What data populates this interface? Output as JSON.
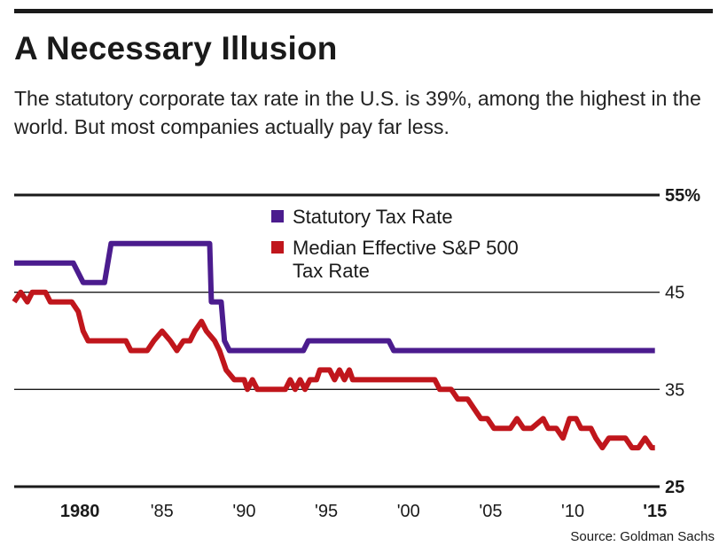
{
  "header": {
    "title": "A Necessary Illusion",
    "subtitle": "The statutory corporate tax rate in the U.S. is 39%, among the highest in the world. But most companies actually pay far less."
  },
  "source": "Source: Goldman Sachs",
  "colors": {
    "statutory": "#4b1c8e",
    "effective": "#c0161c",
    "rule": "#1a1a1a"
  },
  "chart_data": {
    "type": "line",
    "title": "A Necessary Illusion",
    "xlabel": "",
    "ylabel": "",
    "xlim": [
      1976,
      2015.5
    ],
    "ylim": [
      25,
      55
    ],
    "grid": true,
    "legend_position": "top-center",
    "y_ticks": [
      {
        "value": 55,
        "label": "55%"
      },
      {
        "value": 45,
        "label": "45"
      },
      {
        "value": 35,
        "label": "35"
      },
      {
        "value": 25,
        "label": "25"
      }
    ],
    "x_ticks": [
      {
        "value": 1980,
        "label": "1980",
        "bold": true
      },
      {
        "value": 1985,
        "label": "'85",
        "bold": false
      },
      {
        "value": 1990,
        "label": "'90",
        "bold": false
      },
      {
        "value": 1995,
        "label": "'95",
        "bold": false
      },
      {
        "value": 2000,
        "label": "'00",
        "bold": false
      },
      {
        "value": 2005,
        "label": "'05",
        "bold": false
      },
      {
        "value": 2010,
        "label": "'10",
        "bold": false
      },
      {
        "value": 2015,
        "label": "'15",
        "bold": true
      }
    ],
    "series": [
      {
        "name": "Statutory Tax Rate",
        "color": "#4b1c8e",
        "x": [
          1976,
          1979.6,
          1980.2,
          1981.5,
          1981.9,
          1986.8,
          1987.9,
          1988,
          1988.6,
          1988.8,
          1989.1,
          1993.6,
          1993.9,
          1998.8,
          1999.1,
          2015
        ],
        "y": [
          48,
          48,
          46,
          46,
          50,
          50,
          50,
          44,
          44,
          40,
          39,
          39,
          40,
          40,
          39,
          39
        ]
      },
      {
        "name": "Median Effective S&P 500 Tax Rate",
        "color": "#c0161c",
        "x": [
          1976,
          1976.4,
          1976.8,
          1977.1,
          1977.5,
          1977.9,
          1978.2,
          1979.5,
          1979.9,
          1980.2,
          1980.5,
          1982.8,
          1983.1,
          1984.1,
          1984.5,
          1985,
          1985.5,
          1985.9,
          1986.3,
          1986.7,
          1987,
          1987.4,
          1987.7,
          1988.2,
          1988.5,
          1988.9,
          1989.4,
          1990,
          1990.2,
          1990.5,
          1990.8,
          1992.5,
          1992.8,
          1993.1,
          1993.4,
          1993.7,
          1994,
          1994.4,
          1994.6,
          1995.2,
          1995.5,
          1995.8,
          1996.1,
          1996.4,
          1996.6,
          2001.6,
          2001.9,
          2002.6,
          2003,
          2003.6,
          2004,
          2004.4,
          2004.8,
          2005.2,
          2005.5,
          2006.2,
          2006.6,
          2007,
          2007.5,
          2008.2,
          2008.5,
          2009,
          2009.4,
          2009.8,
          2010.2,
          2010.5,
          2011.1,
          2011.4,
          2011.8,
          2012.2,
          2013.2,
          2013.6,
          2014,
          2014.4,
          2014.8,
          2015
        ],
        "y": [
          44,
          45,
          44,
          45,
          45,
          45,
          44,
          44,
          43,
          41,
          40,
          40,
          39,
          39,
          40,
          41,
          40,
          39,
          40,
          40,
          41,
          42,
          41,
          40,
          39,
          37,
          36,
          36,
          35,
          36,
          35,
          35,
          36,
          35,
          36,
          35,
          36,
          36,
          37,
          37,
          36,
          37,
          36,
          37,
          36,
          36,
          35,
          35,
          34,
          34,
          33,
          32,
          32,
          31,
          31,
          31,
          32,
          31,
          31,
          32,
          31,
          31,
          30,
          32,
          32,
          31,
          31,
          30,
          29,
          30,
          30,
          29,
          29,
          30,
          29,
          29
        ]
      }
    ]
  }
}
